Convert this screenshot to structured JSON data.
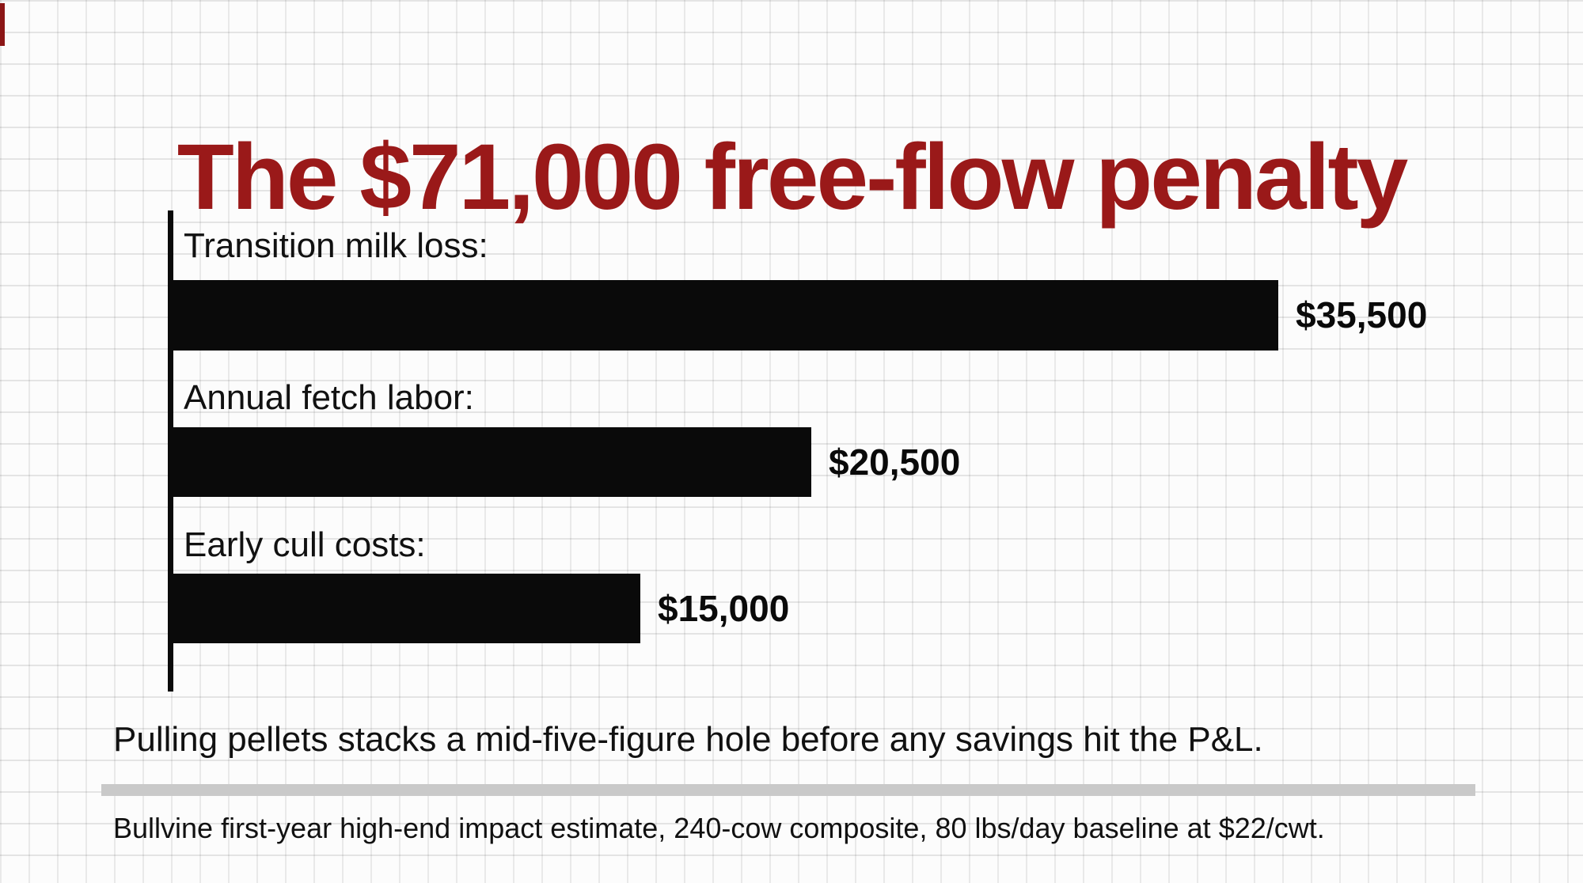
{
  "title": {
    "text": "The $71,000 free-flow penalty",
    "color": "#9a1919"
  },
  "chart": {
    "bars": [
      {
        "label": "Transition milk loss:",
        "value": 35500,
        "value_label": "$35,500"
      },
      {
        "label": "Annual fetch labor:",
        "value": 20500,
        "value_label": "$20,500"
      },
      {
        "label": "Early cull costs:",
        "value": 15000,
        "value_label": "$15,000"
      }
    ],
    "bar_color": "#0a0a0a"
  },
  "caption": "Pulling pellets stacks a mid-five-figure hole before any savings hit the P&L.",
  "footer": "Bullvine first-year high-end impact estimate, 240-cow composite, 80 lbs/day baseline at $22/cwt.",
  "chart_data": {
    "type": "bar",
    "orientation": "horizontal",
    "title": "The $71,000 free-flow penalty",
    "categories": [
      "Transition milk loss:",
      "Annual fetch labor:",
      "Early cull costs:"
    ],
    "values": [
      35500,
      20500,
      15000
    ],
    "value_labels": [
      "$35,500",
      "$20,500",
      "$15,000"
    ],
    "total_implied": 71000,
    "xlabel": "",
    "ylabel": "",
    "xlim": [
      0,
      35500
    ],
    "grid": "graph-paper background",
    "legend": "none",
    "bar_color": "#0a0a0a",
    "annotation": "Pulling pellets stacks a mid-five-figure hole before any savings hit the P&L.",
    "source_note": "Bullvine first-year high-end impact estimate, 240-cow composite, 80 lbs/day baseline at $22/cwt."
  }
}
